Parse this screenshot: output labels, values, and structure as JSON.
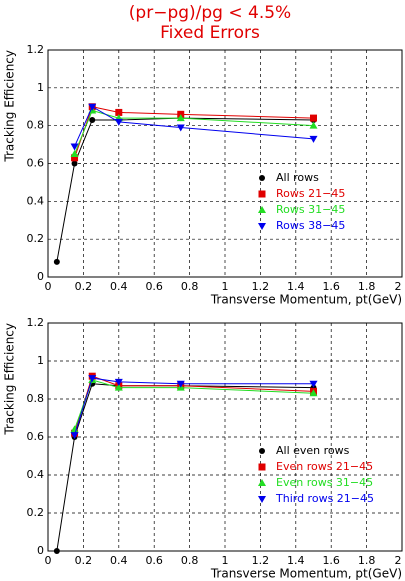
{
  "title": "(pr−pg)/pg < 4.5%",
  "subtitle": "Fixed Errors",
  "chart_data": [
    {
      "type": "line",
      "x_label": "Transverse Momentum, pt(GeV)",
      "y_label": "Tracking Efficiency",
      "x": [
        0.05,
        0.15,
        0.25,
        0.4,
        0.75,
        1.5
      ],
      "xlim": [
        0,
        2
      ],
      "xticks": [
        0,
        0.2,
        0.4,
        0.6,
        0.8,
        1,
        1.2,
        1.4,
        1.6,
        1.8,
        2
      ],
      "ylim": [
        0,
        1.2
      ],
      "yticks": [
        0,
        0.2,
        0.4,
        0.6,
        0.8,
        1,
        1.2
      ],
      "grid": true,
      "series": [
        {
          "name": "All rows",
          "color": "#000000",
          "marker": "circle",
          "values": [
            0.08,
            0.6,
            0.83,
            0.83,
            0.84,
            0.83
          ]
        },
        {
          "name": "Rows 21−45",
          "color": "#e00000",
          "marker": "square",
          "values": [
            null,
            0.63,
            0.9,
            0.87,
            0.86,
            0.84
          ]
        },
        {
          "name": "Rows 31−45",
          "color": "#22dd22",
          "marker": "triangle-up",
          "values": [
            null,
            0.65,
            0.88,
            0.84,
            0.84,
            0.8
          ]
        },
        {
          "name": "Rows 38−45",
          "color": "#0000ee",
          "marker": "triangle-down",
          "values": [
            null,
            0.69,
            0.9,
            0.82,
            0.79,
            0.73
          ]
        }
      ]
    },
    {
      "type": "line",
      "x_label": "Transverse Momentum, pt(GeV)",
      "y_label": "Tracking Efficiency",
      "x": [
        0.05,
        0.15,
        0.25,
        0.4,
        0.75,
        1.5
      ],
      "xlim": [
        0,
        2
      ],
      "xticks": [
        0,
        0.2,
        0.4,
        0.6,
        0.8,
        1,
        1.2,
        1.4,
        1.6,
        1.8,
        2
      ],
      "ylim": [
        0,
        1.2
      ],
      "yticks": [
        0,
        0.2,
        0.4,
        0.6,
        0.8,
        1,
        1.2
      ],
      "grid": true,
      "series": [
        {
          "name": "All even rows",
          "color": "#000000",
          "marker": "circle",
          "values": [
            0,
            0.6,
            0.88,
            0.87,
            0.87,
            0.86
          ]
        },
        {
          "name": "Even rows 21−45",
          "color": "#e00000",
          "marker": "square",
          "values": [
            null,
            0.62,
            0.92,
            0.87,
            0.87,
            0.84
          ]
        },
        {
          "name": "Even rows 31−45",
          "color": "#22dd22",
          "marker": "triangle-up",
          "values": [
            null,
            0.64,
            0.9,
            0.86,
            0.86,
            0.83
          ]
        },
        {
          "name": "Third rows 21−45",
          "color": "#0000ee",
          "marker": "triangle-down",
          "values": [
            null,
            0.61,
            0.91,
            0.89,
            0.88,
            0.88
          ]
        }
      ]
    }
  ]
}
